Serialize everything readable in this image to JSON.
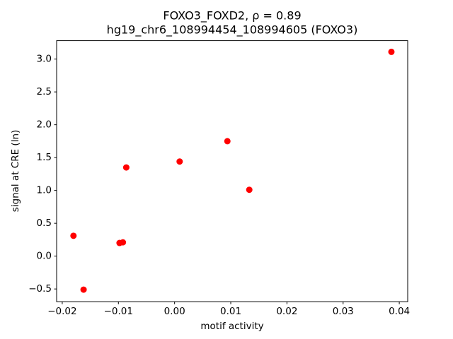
{
  "chart_data": {
    "type": "scatter",
    "title": "FOXO3_FOXD2, ρ = 0.89",
    "subtitle": "hg19_chr6_108994454_108994605 (FOXO3)",
    "x_label": "motif activity",
    "y_label": "signal at CRE (ln)",
    "color": "#ff0000",
    "x": [
      0.0386,
      0.0094,
      0.0009,
      -0.0086,
      0.0133,
      -0.018,
      -0.0098,
      -0.0092,
      -0.0162
    ],
    "values": [
      3.11,
      1.75,
      1.44,
      1.35,
      1.01,
      0.31,
      0.2,
      0.21,
      -0.51
    ],
    "xlim": [
      -0.021,
      0.0415
    ],
    "ylim": [
      -0.694,
      3.28
    ],
    "xticks": [
      {
        "value": -0.02,
        "label": "−0.02"
      },
      {
        "value": -0.01,
        "label": "−0.01"
      },
      {
        "value": 0,
        "label": "0.00"
      },
      {
        "value": 0.01,
        "label": "0.01"
      },
      {
        "value": 0.02,
        "label": "0.02"
      },
      {
        "value": 0.03,
        "label": "0.03"
      },
      {
        "value": 0.04,
        "label": "0.04"
      }
    ],
    "yticks": [
      {
        "value": -0.5,
        "label": "−0.5"
      },
      {
        "value": 0,
        "label": "0.0"
      },
      {
        "value": 0.5,
        "label": "0.5"
      },
      {
        "value": 1,
        "label": "1.0"
      },
      {
        "value": 1.5,
        "label": "1.5"
      },
      {
        "value": 2,
        "label": "2.0"
      },
      {
        "value": 2.5,
        "label": "2.5"
      },
      {
        "value": 3,
        "label": "3.0"
      }
    ]
  }
}
